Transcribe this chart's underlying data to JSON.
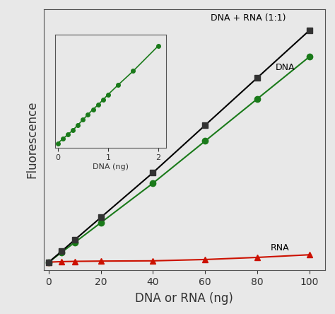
{
  "main": {
    "dna_x": [
      0,
      5,
      10,
      20,
      40,
      60,
      80,
      100
    ],
    "dna_y": [
      0,
      0.038,
      0.075,
      0.15,
      0.3,
      0.46,
      0.62,
      0.78
    ],
    "dna_rna_x": [
      0,
      5,
      10,
      20,
      40,
      60,
      80,
      100
    ],
    "dna_rna_y": [
      0,
      0.042,
      0.085,
      0.17,
      0.34,
      0.52,
      0.7,
      0.88
    ],
    "rna_x": [
      0,
      5,
      10,
      20,
      40,
      60,
      80,
      100
    ],
    "rna_y": [
      0,
      0.002,
      0.003,
      0.004,
      0.005,
      0.01,
      0.018,
      0.028
    ],
    "xlim": [
      -2,
      106
    ],
    "ylim": [
      -0.03,
      0.96
    ],
    "xlabel": "DNA or RNA (ng)",
    "ylabel": "Fluorescence",
    "xticks": [
      0,
      20,
      40,
      60,
      80,
      100
    ],
    "dna_label": "DNA",
    "dna_rna_label": "DNA + RNA (1:1)",
    "rna_label": "RNA",
    "dna_color": "#1a7a1a",
    "dna_rna_color": "#000000",
    "rna_color": "#cc1100"
  },
  "inset": {
    "x": [
      0,
      0.1,
      0.2,
      0.3,
      0.4,
      0.5,
      0.6,
      0.7,
      0.8,
      0.9,
      1.0,
      1.2,
      1.5,
      2.0
    ],
    "y": [
      0.0,
      0.005,
      0.01,
      0.015,
      0.021,
      0.027,
      0.033,
      0.039,
      0.044,
      0.05,
      0.056,
      0.067,
      0.083,
      0.112
    ],
    "xlim": [
      -0.05,
      2.15
    ],
    "ylim": [
      -0.005,
      0.125
    ],
    "xlabel": "DNA (ng)",
    "xticks": [
      0,
      1.0,
      2.0
    ],
    "color": "#1a7a1a"
  },
  "fig_bg": "#e8e8e8",
  "plot_bg": "#e8e8e8",
  "label_color": "#333333",
  "annotation_fontsize": 9,
  "axis_fontsize": 12,
  "tick_fontsize": 10
}
